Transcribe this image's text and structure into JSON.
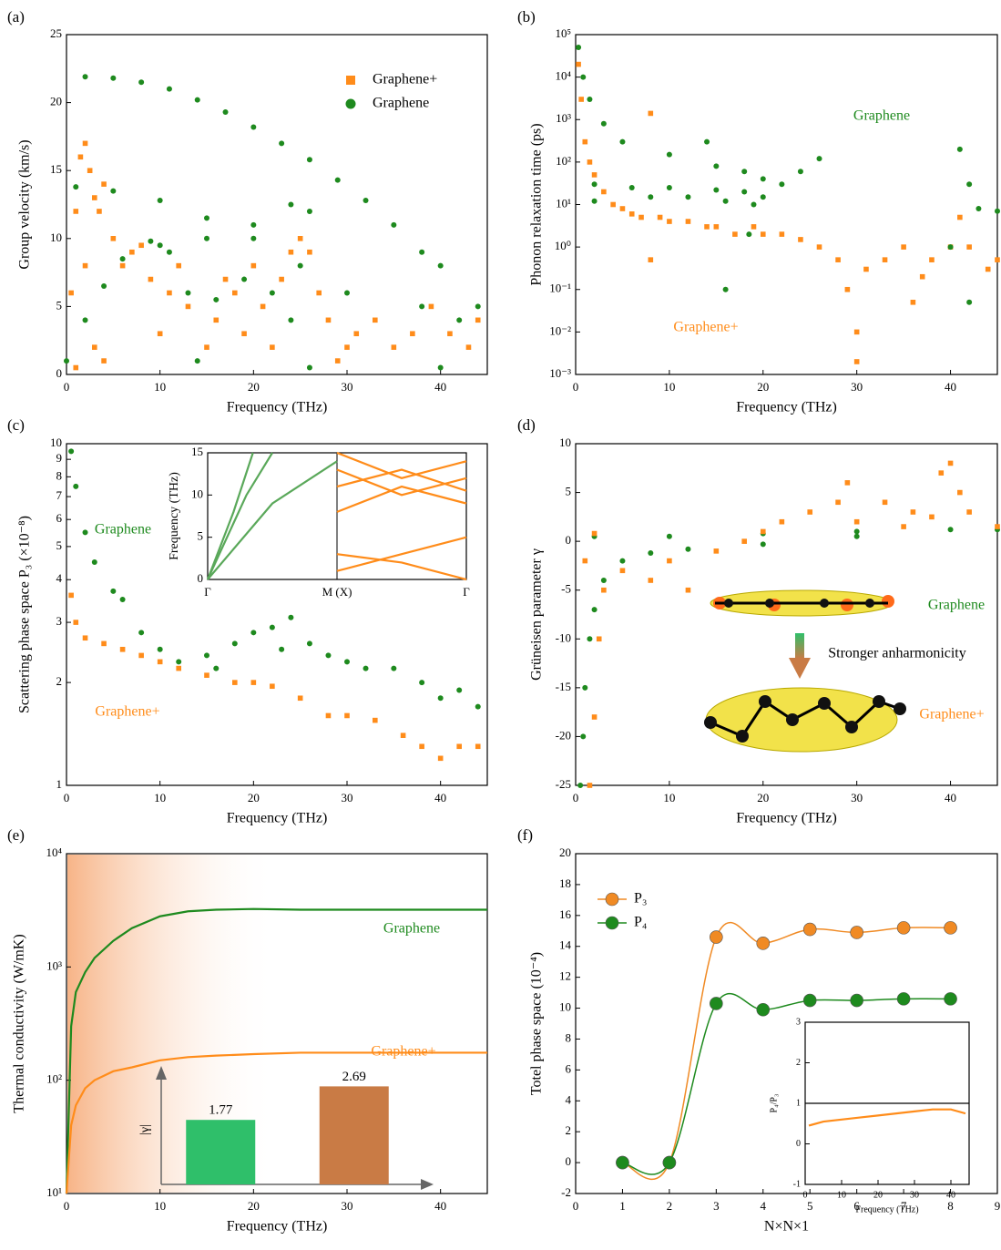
{
  "chart_data": [
    {
      "type": "scatter",
      "label": "(a)",
      "xlabel": "Frequency (THz)",
      "ylabel": "Group velocity (km/s)",
      "xlim": [
        0,
        45
      ],
      "ylim": [
        0,
        25
      ],
      "xticks": [
        0,
        10,
        20,
        30,
        40
      ],
      "yticks": [
        0,
        5,
        10,
        15,
        20,
        25
      ],
      "legend": "upper right",
      "series": [
        {
          "name": "Graphene+",
          "color": "#ff8c1a",
          "marker": "square",
          "x": [
            0.5,
            1,
            1.5,
            2,
            2.5,
            3,
            3.5,
            4,
            5,
            6,
            7,
            8,
            9,
            10,
            11,
            12,
            13,
            15,
            16,
            17,
            18,
            19,
            20,
            21,
            22,
            23,
            24,
            25,
            26,
            27,
            28,
            29,
            30,
            31,
            33,
            35,
            37,
            39,
            41,
            43,
            44,
            1,
            2,
            3,
            4
          ],
          "values": [
            6,
            12,
            16,
            17,
            15,
            13,
            12,
            14,
            10,
            8,
            9,
            9.5,
            7,
            3,
            6,
            8,
            5,
            2,
            4,
            7,
            6,
            3,
            8,
            5,
            2,
            7,
            9,
            10,
            9,
            6,
            4,
            1,
            2,
            3,
            4,
            2,
            3,
            5,
            3,
            2,
            4,
            0.5,
            8,
            2,
            1
          ]
        },
        {
          "name": "Graphene",
          "color": "#1e8a1e",
          "marker": "circle",
          "x": [
            2,
            5,
            8,
            11,
            14,
            17,
            20,
            23,
            26,
            29,
            32,
            35,
            38,
            40,
            1,
            5,
            10,
            15,
            20,
            25,
            30,
            0,
            2,
            4,
            6,
            9,
            11,
            13,
            14,
            16,
            19,
            22,
            24,
            26,
            10,
            15,
            20,
            24,
            26,
            38,
            40,
            42,
            44
          ],
          "values": [
            21.9,
            21.8,
            21.5,
            21,
            20.2,
            19.3,
            18.2,
            17,
            15.8,
            14.3,
            12.8,
            11,
            9,
            8,
            13.8,
            13.5,
            12.8,
            11.5,
            10,
            8,
            6,
            1,
            4,
            6.5,
            8.5,
            9.8,
            9,
            6,
            1,
            5.5,
            7,
            6,
            4,
            0.5,
            9.5,
            10,
            11,
            12.5,
            12,
            5,
            0.5,
            4,
            5
          ]
        }
      ]
    },
    {
      "type": "scatter",
      "label": "(b)",
      "xlabel": "Frequency (THz)",
      "ylabel": "Phonon relaxation time (ps)",
      "yscale": "log",
      "xlim": [
        0,
        45
      ],
      "ylim": [
        0.001,
        100000
      ],
      "xticks": [
        0,
        10,
        20,
        30,
        40
      ],
      "yticks": [
        {
          "value": 0.001,
          "label": "10⁻³"
        },
        {
          "value": 0.01,
          "label": "10⁻²"
        },
        {
          "value": 0.1,
          "label": "10⁻¹"
        },
        {
          "value": 1,
          "label": "10⁰"
        },
        {
          "value": 10,
          "label": "10¹"
        },
        {
          "value": 100,
          "label": "10²"
        },
        {
          "value": 1000,
          "label": "10³"
        },
        {
          "value": 10000,
          "label": "10⁴"
        },
        {
          "value": 100000,
          "label": "10⁵"
        }
      ],
      "annotations": [
        {
          "text": "Graphene",
          "color": "#1e8a1e"
        },
        {
          "text": "Graphene+",
          "color": "#ff8c1a"
        }
      ],
      "series": [
        {
          "color": "#ff8c1a",
          "marker": "square",
          "x": [
            0.3,
            0.6,
            1,
            1.5,
            2,
            3,
            4,
            5,
            6,
            7,
            8,
            9,
            10,
            12,
            14,
            15,
            17,
            19,
            20,
            22,
            24,
            26,
            28,
            29,
            30,
            31,
            33,
            35,
            37,
            38,
            40,
            41,
            42,
            44,
            45,
            8,
            30,
            36
          ],
          "values": [
            20000,
            3000,
            300,
            100,
            50,
            20,
            10,
            8,
            6,
            5,
            1400,
            5,
            4,
            4,
            3,
            3,
            2,
            3,
            2,
            2,
            1.5,
            1,
            0.5,
            0.1,
            0.01,
            0.3,
            0.5,
            1,
            0.2,
            0.5,
            1,
            5,
            1,
            0.3,
            0.5,
            0.5,
            0.002,
            0.05
          ]
        },
        {
          "color": "#1e8a1e",
          "marker": "circle",
          "x": [
            0.3,
            0.8,
            1.5,
            3,
            5,
            10,
            15,
            18,
            20,
            22,
            24,
            26,
            2,
            6,
            10,
            15,
            18,
            20,
            2,
            8,
            12,
            16,
            18.5,
            19,
            14,
            16,
            41,
            42,
            43,
            45,
            40,
            42
          ],
          "values": [
            50000,
            10000,
            3000,
            800,
            300,
            150,
            80,
            60,
            40,
            30,
            60,
            120,
            30,
            25,
            25,
            22,
            20,
            15,
            12,
            15,
            15,
            12,
            2,
            10,
            300,
            0.1,
            200,
            30,
            8,
            7,
            1,
            0.05
          ]
        }
      ]
    },
    {
      "type": "scatter",
      "label": "(c)",
      "xlabel": "Frequency (THz)",
      "ylabel": "Scattering phase space P₃ (×10⁻⁸)",
      "yscale": "log",
      "xlim": [
        0,
        45
      ],
      "ylim": [
        1,
        10
      ],
      "xticks": [
        0,
        10,
        20,
        30,
        40
      ],
      "yticks": [
        1,
        2,
        3,
        4,
        5,
        6,
        7,
        8,
        9,
        10
      ],
      "annotations": [
        {
          "text": "Graphene",
          "color": "#1e8a1e"
        },
        {
          "text": "Graphene+",
          "color": "#ff8c1a"
        }
      ],
      "series": [
        {
          "color": "#1e8a1e",
          "marker": "circle",
          "x": [
            0.5,
            1,
            2,
            3,
            5,
            6,
            8,
            10,
            15,
            18,
            20,
            22,
            24,
            26,
            28,
            30,
            32,
            35,
            38,
            40,
            42,
            44,
            12,
            16,
            23
          ],
          "values": [
            9.5,
            7.5,
            5.5,
            4.5,
            3.7,
            3.5,
            2.8,
            2.5,
            2.4,
            2.6,
            2.8,
            2.9,
            3.1,
            2.6,
            2.4,
            2.3,
            2.2,
            2.2,
            2.0,
            1.8,
            1.9,
            1.7,
            2.3,
            2.2,
            2.5
          ]
        },
        {
          "color": "#ff8c1a",
          "marker": "square",
          "x": [
            0.5,
            1,
            2,
            4,
            6,
            8,
            10,
            12,
            15,
            18,
            20,
            22,
            25,
            28,
            30,
            33,
            36,
            38,
            40,
            42,
            44
          ],
          "values": [
            3.6,
            3,
            2.7,
            2.6,
            2.5,
            2.4,
            2.3,
            2.2,
            2.1,
            2,
            2.0,
            1.95,
            1.8,
            1.6,
            1.6,
            1.55,
            1.4,
            1.3,
            1.2,
            1.3,
            1.3
          ]
        }
      ]
    },
    {
      "type": "line",
      "ylabel": "Frequency (THz)",
      "xlim": [
        0,
        2
      ],
      "ylim": [
        0,
        15
      ],
      "xticks": [
        {
          "value": 0,
          "label": "Γ"
        },
        {
          "value": 1,
          "label": "M (X)"
        },
        {
          "value": 2,
          "label": "Γ"
        }
      ],
      "yticks": [
        0,
        5,
        10,
        15
      ],
      "grid": "x",
      "series": [
        {
          "color": "#5aa85a",
          "x": [
            0,
            0.5,
            1
          ],
          "values": [
            0,
            9,
            14
          ]
        },
        {
          "color": "#5aa85a",
          "x": [
            0,
            0.3,
            0.5
          ],
          "values": [
            0,
            10,
            15
          ]
        },
        {
          "color": "#5aa85a",
          "x": [
            0,
            0.2,
            0.35
          ],
          "values": [
            0,
            8,
            15
          ]
        },
        {
          "color": "#ff8c1a",
          "x": [
            1,
            1.5,
            2
          ],
          "values": [
            15,
            12,
            14
          ]
        },
        {
          "color": "#ff8c1a",
          "x": [
            1,
            1.5,
            2
          ],
          "values": [
            13,
            10,
            12
          ]
        },
        {
          "color": "#ff8c1a",
          "x": [
            1,
            1.5,
            2
          ],
          "values": [
            8,
            11,
            9
          ]
        },
        {
          "color": "#ff8c1a",
          "x": [
            1,
            1.5,
            2
          ],
          "values": [
            11,
            13,
            10.5
          ]
        },
        {
          "color": "#ff8c1a",
          "x": [
            1,
            1.5,
            2
          ],
          "values": [
            3,
            2,
            0
          ]
        },
        {
          "color": "#ff8c1a",
          "x": [
            1,
            1.5,
            2
          ],
          "values": [
            1,
            3,
            5
          ]
        }
      ]
    },
    {
      "type": "scatter",
      "label": "(d)",
      "xlabel": "Frequency (THz)",
      "ylabel": "Grüneisen parameter γ",
      "xlim": [
        0,
        45
      ],
      "ylim": [
        -25,
        10
      ],
      "xticks": [
        0,
        10,
        20,
        30,
        40
      ],
      "yticks": [
        -25,
        -20,
        -15,
        -10,
        -5,
        0,
        5,
        10
      ],
      "annotations": [
        {
          "text": "Graphene",
          "color": "#1e8a1e"
        },
        {
          "text": "Stronger anharmonicity",
          "color": "#000000"
        },
        {
          "text": "Graphene+",
          "color": "#ff8c1a"
        }
      ],
      "series": [
        {
          "color": "#1e8a1e",
          "marker": "circle",
          "x": [
            0.5,
            0.8,
            1,
            1.5,
            2,
            3,
            5,
            8,
            12,
            20,
            30,
            40,
            45,
            2,
            10,
            20,
            30
          ],
          "values": [
            -25,
            -20,
            -15,
            -10,
            -7,
            -4,
            -2,
            -1.2,
            -0.8,
            -0.3,
            0.5,
            1.2,
            1.2,
            0.5,
            0.5,
            0.8,
            1
          ]
        },
        {
          "color": "#ff8c1a",
          "marker": "square",
          "x": [
            1.5,
            2,
            2.5,
            3,
            1,
            2,
            5,
            8,
            10,
            12,
            15,
            18,
            20,
            22,
            25,
            28,
            29,
            30,
            33,
            35,
            36,
            38,
            39,
            40,
            41,
            42,
            45
          ],
          "values": [
            -25,
            -18,
            -10,
            -5,
            -2,
            0.8,
            -3,
            -4,
            -2,
            -5,
            -1,
            0,
            1,
            2,
            3,
            4,
            6,
            2,
            4,
            1.5,
            3,
            2.5,
            7,
            8,
            5,
            3,
            1.5
          ]
        }
      ]
    },
    {
      "type": "line",
      "label": "(e)",
      "xlabel": "Frequency (THz)",
      "ylabel": "Thermal conductivity (W/mK)",
      "yscale": "log",
      "xlim": [
        0,
        45
      ],
      "ylim": [
        10,
        10000
      ],
      "xticks": [
        0,
        10,
        20,
        30,
        40
      ],
      "yticks": [
        {
          "value": 10,
          "label": "10¹"
        },
        {
          "value": 100,
          "label": "10²"
        },
        {
          "value": 1000,
          "label": "10³"
        },
        {
          "value": 10000,
          "label": "10⁴"
        }
      ],
      "annotations": [
        {
          "text": "Graphene",
          "color": "#1e8a1e"
        },
        {
          "text": "Graphene+",
          "color": "#ff8c1a"
        }
      ],
      "series": [
        {
          "color": "#1e8a1e",
          "x": [
            0,
            0.5,
            1,
            2,
            3,
            5,
            7,
            10,
            13,
            16,
            20,
            25,
            30,
            45
          ],
          "values": [
            10,
            300,
            600,
            900,
            1200,
            1700,
            2200,
            2800,
            3100,
            3200,
            3250,
            3200,
            3200,
            3200
          ]
        },
        {
          "color": "#ff8c1a",
          "x": [
            0,
            0.5,
            1,
            2,
            3,
            5,
            7,
            10,
            13,
            16,
            20,
            25,
            30,
            45
          ],
          "values": [
            10,
            40,
            60,
            85,
            100,
            120,
            130,
            150,
            160,
            165,
            170,
            175,
            175,
            175
          ]
        }
      ]
    },
    {
      "type": "bar",
      "ylabel": "|γ|",
      "ylim": [
        0,
        3
      ],
      "categories": [
        null,
        null
      ],
      "values": [
        1.77,
        2.69
      ],
      "colors": [
        "#2fbf6a",
        "#c97b45"
      ]
    },
    {
      "type": "line",
      "label": "(f)",
      "xlabel": "N×N×1",
      "ylabel": "Totel phase space (10⁻⁴)",
      "smooth": true,
      "legend": "upper left",
      "xlim": [
        0,
        9
      ],
      "ylim": [
        -2,
        20
      ],
      "xticks": [
        0,
        1,
        2,
        3,
        4,
        5,
        6,
        7,
        8,
        9
      ],
      "yticks": [
        -2,
        0,
        2,
        4,
        6,
        8,
        10,
        12,
        14,
        16,
        18,
        20
      ],
      "series": [
        {
          "name": "P₃",
          "color": "#f08a24",
          "marker": "circle",
          "x": [
            1,
            2,
            3,
            4,
            5,
            6,
            7,
            8
          ],
          "values": [
            0,
            0,
            14.6,
            14.2,
            15.1,
            14.9,
            15.2,
            15.2
          ]
        },
        {
          "name": "P₄",
          "color": "#1e8a1e",
          "marker": "circle",
          "x": [
            1,
            2,
            3,
            4,
            5,
            6,
            7,
            8
          ],
          "values": [
            0,
            0,
            10.3,
            9.9,
            10.5,
            10.5,
            10.6,
            10.6
          ]
        }
      ]
    },
    {
      "type": "line",
      "xlabel": "Frequency (THz)",
      "ylabel": "P₄/P₃",
      "hline": 1,
      "xlim": [
        0,
        45
      ],
      "ylim": [
        -1,
        3
      ],
      "xticks": [
        0,
        10,
        20,
        30,
        40
      ],
      "yticks": [
        -1,
        0,
        1,
        2,
        3
      ],
      "series": [
        {
          "color": "#ff8c1a",
          "x": [
            1,
            5,
            10,
            15,
            20,
            25,
            30,
            35,
            40,
            44
          ],
          "values": [
            0.45,
            0.55,
            0.6,
            0.65,
            0.7,
            0.75,
            0.8,
            0.85,
            0.85,
            0.75
          ]
        }
      ]
    }
  ]
}
